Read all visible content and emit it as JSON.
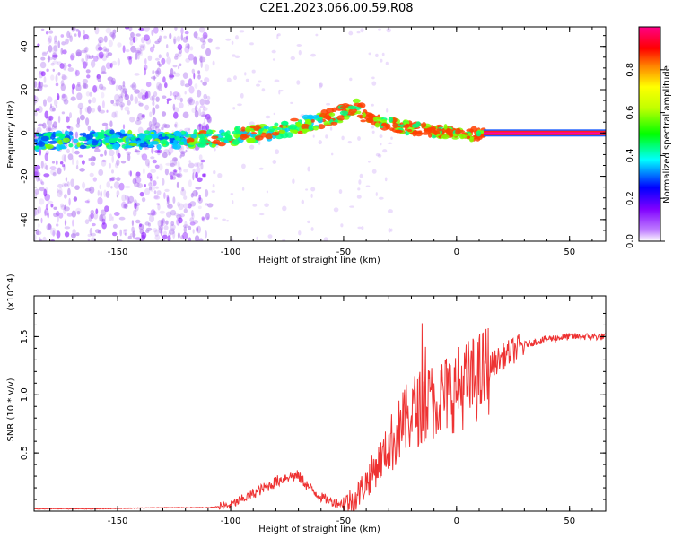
{
  "title": "C2E1.2023.066.00.59.R08",
  "chart_data": [
    {
      "type": "heatmap",
      "xlabel": "Height of straight line (km)",
      "ylabel": "Frequency (Hz)",
      "xlim": [
        -187,
        66
      ],
      "ylim": [
        -50,
        49
      ],
      "x_ticks": [
        -150,
        -100,
        -50,
        0,
        50
      ],
      "y_ticks": [
        -40,
        -20,
        0,
        20,
        40
      ],
      "colorbar": {
        "label": "Normalized spectral amplitude",
        "range": [
          0.0,
          1.0
        ],
        "ticks": [
          "0.0",
          "0.2",
          "0.4",
          "0.6",
          "0.8"
        ],
        "colors": [
          "#ffffff",
          "#8000ff",
          "#0000ff",
          "#00ffff",
          "#00ff00",
          "#ffff00",
          "#ff8000",
          "#ff0000",
          "#ff00aa"
        ]
      },
      "ridge": {
        "x": [
          -187,
          -160,
          -140,
          -120,
          -100,
          -80,
          -60,
          -50,
          -45,
          -40,
          -30,
          -20,
          -10,
          0,
          10,
          12,
          66
        ],
        "y": [
          -4,
          -3,
          -3,
          -3,
          -2,
          1,
          6,
          9,
          12,
          8,
          4,
          2,
          1,
          0,
          -1,
          0,
          0
        ]
      }
    },
    {
      "type": "line",
      "xlabel": "Height of straight line (km)",
      "ylabel": "SNR (10 * v/v)",
      "y_multiplier": "(x10^4)",
      "xlim": [
        -187,
        66
      ],
      "ylim": [
        0,
        1.85
      ],
      "x_ticks": [
        -150,
        -100,
        -50,
        0,
        50
      ],
      "y_ticks": [
        "0.5",
        "1.0",
        "1.5"
      ],
      "series": [
        {
          "color": "#ee3333",
          "x": [
            -187,
            -160,
            -130,
            -110,
            -100,
            -95,
            -90,
            -85,
            -80,
            -75,
            -70,
            -65,
            -60,
            -55,
            -50,
            -45,
            -40,
            -35,
            -30,
            -25,
            -20,
            -15,
            -10,
            -5,
            0,
            5,
            10,
            15,
            20,
            25,
            30,
            40,
            50,
            60,
            66
          ],
          "y": [
            0.02,
            0.02,
            0.03,
            0.03,
            0.05,
            0.1,
            0.15,
            0.2,
            0.25,
            0.3,
            0.3,
            0.2,
            0.12,
            0.08,
            0.06,
            0.1,
            0.25,
            0.4,
            0.55,
            0.7,
            0.85,
            0.9,
            0.95,
            1.0,
            1.05,
            1.1,
            1.15,
            1.25,
            1.32,
            1.38,
            1.43,
            1.48,
            1.5,
            1.5,
            1.5
          ]
        }
      ]
    }
  ]
}
